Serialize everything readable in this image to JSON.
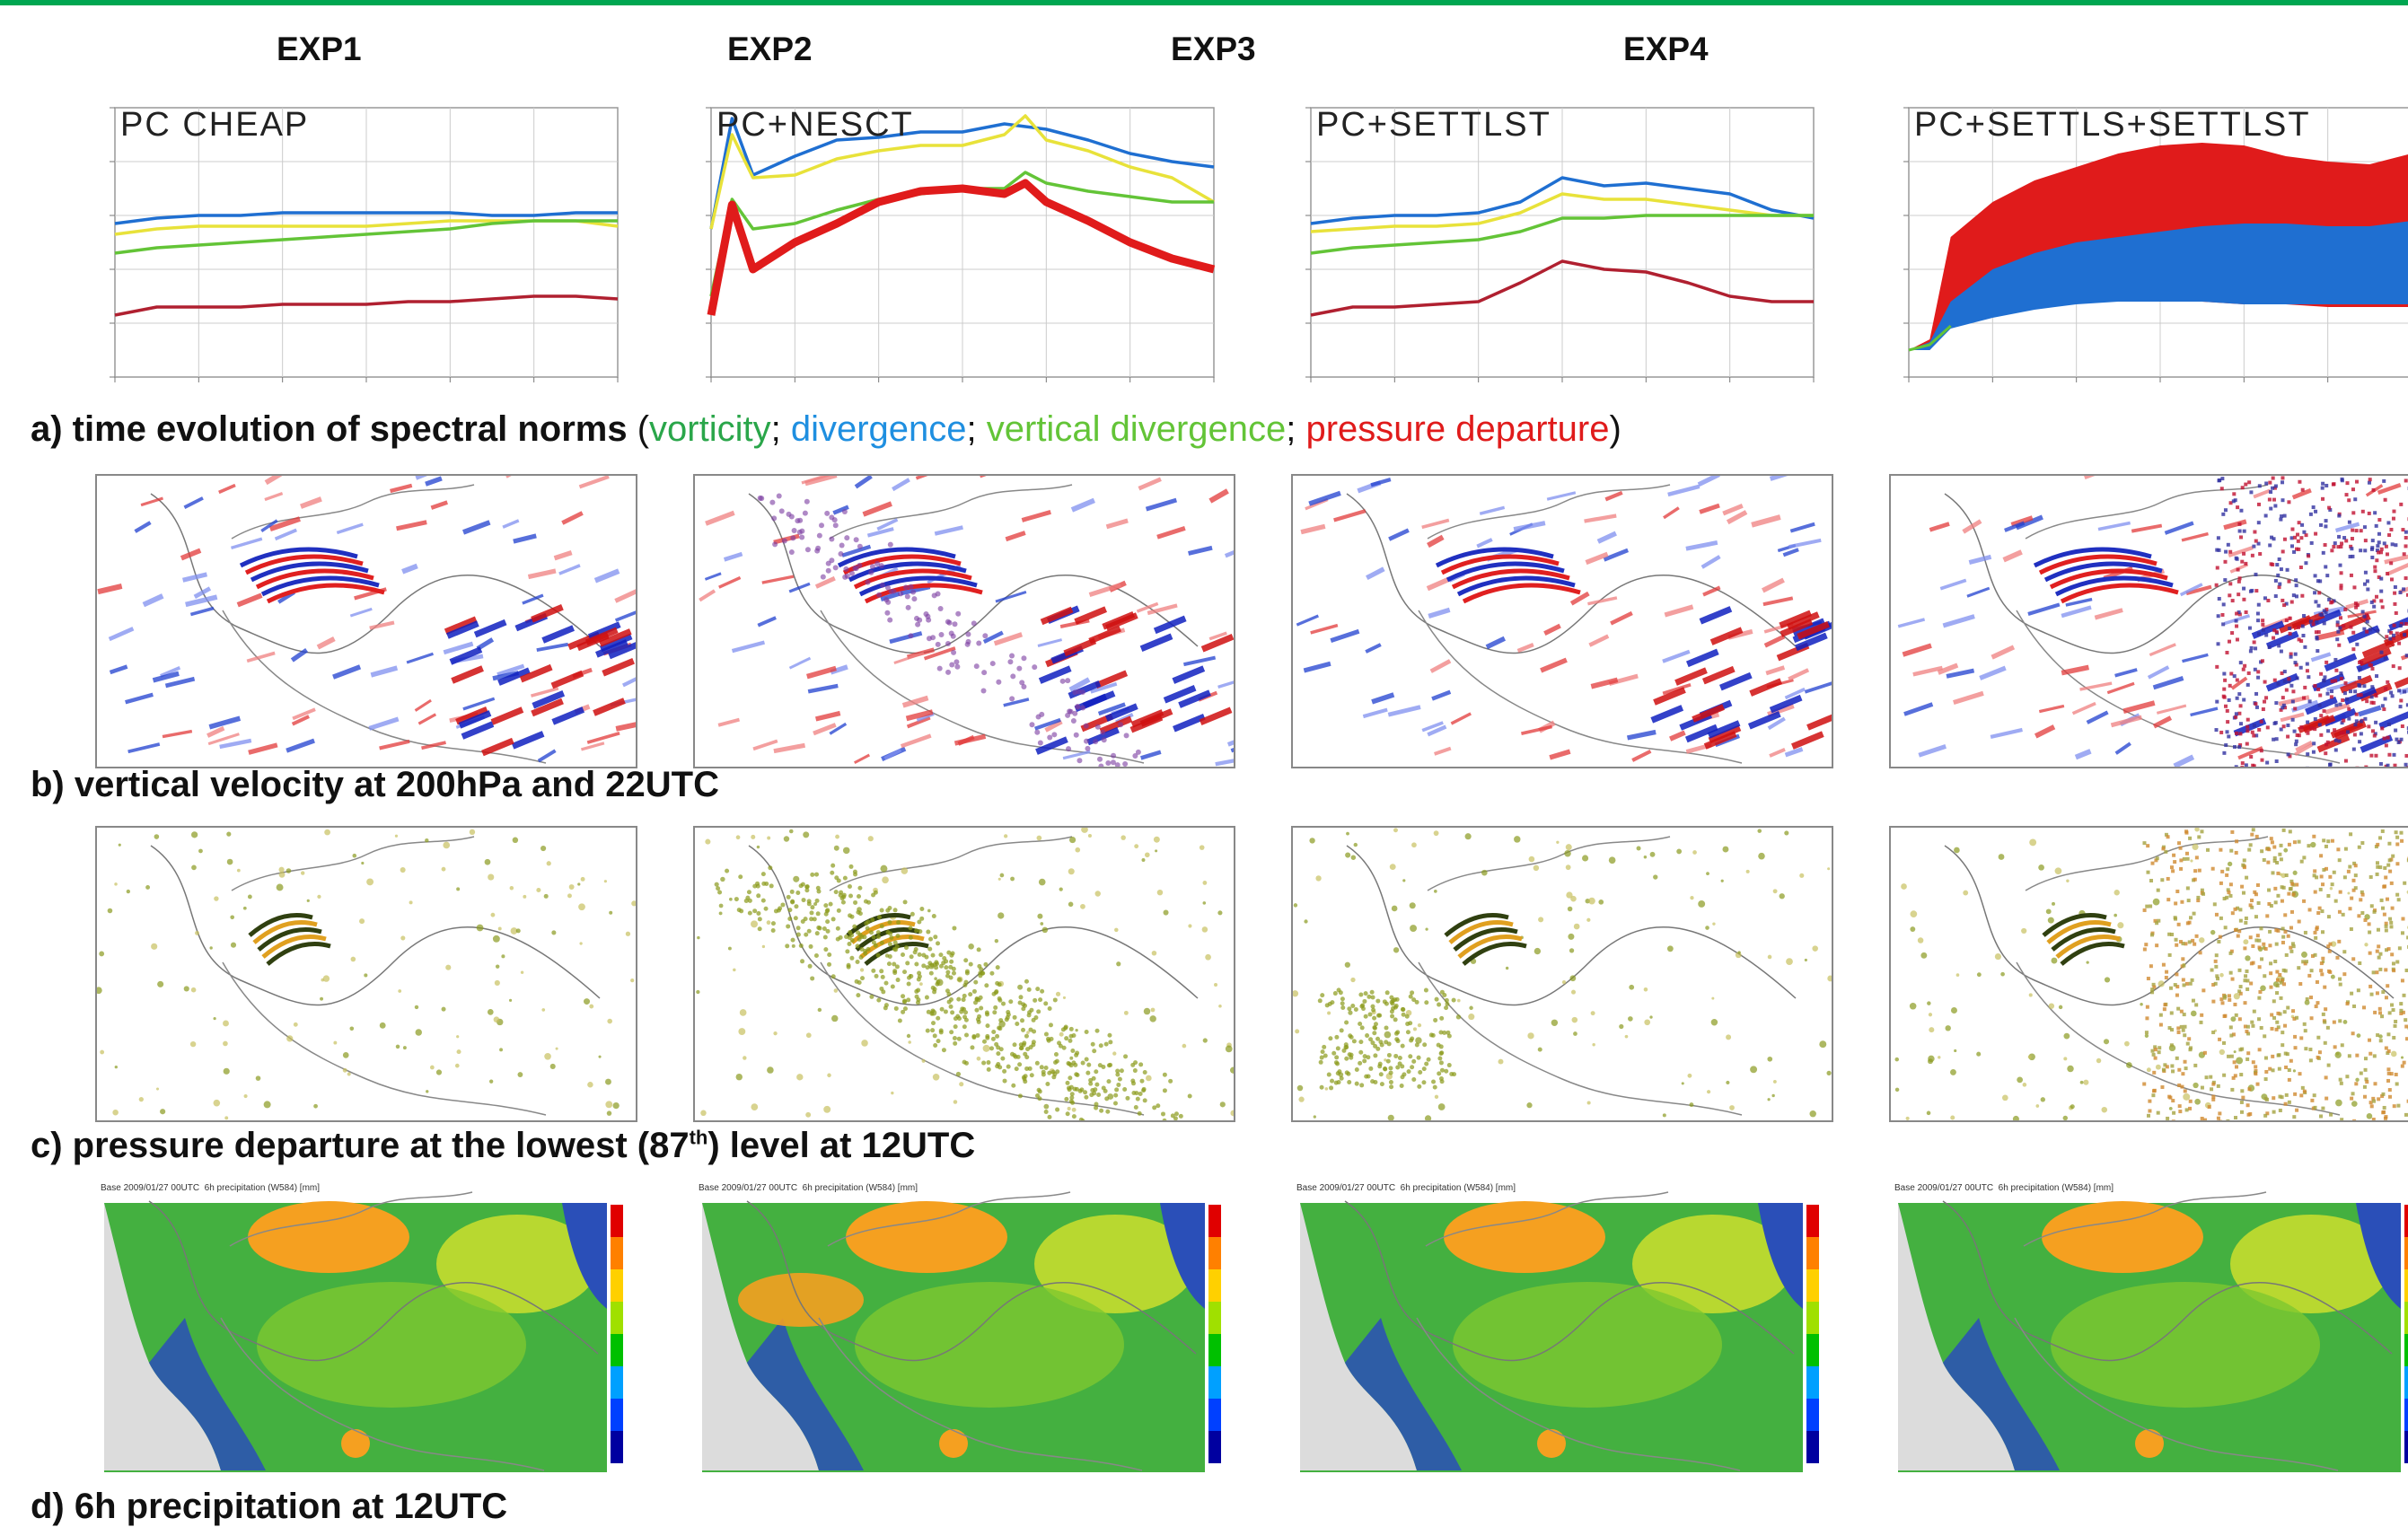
{
  "experiments": [
    "EXP1",
    "EXP2",
    "EXP3",
    "EXP4"
  ],
  "captions": {
    "a_prefix": "a) time evolution of spectral norms",
    "a_open": " (",
    "a_vort": "vorticity",
    "a_sep1": "; ",
    "a_div": "divergence",
    "a_sep2": "; ",
    "a_vdiv": "vertical divergence",
    "a_sep3": "; ",
    "a_pd": "pressure departure",
    "a_close": ")",
    "b": "b) vertical velocity at 200hPa and 22UTC",
    "c_pre": "c) pressure departure at the lowest (87",
    "c_sup": "th",
    "c_post": ") level at 12UTC",
    "d": "d) 6h precipitation at 12UTC"
  },
  "colors": {
    "vorticity": "#2aa64a",
    "divergence": "#1f6fd1",
    "vertical_divergence": "#63c437",
    "pressure_departure": "#e01b1b",
    "yellow": "#e8e23a",
    "topbar": "#00a651"
  },
  "precip_panel": {
    "header": "Base 2009/01/27 00UTC",
    "field": "6h precipitation (W584) [mm]"
  },
  "chart_data": [
    {
      "type": "line",
      "title": "PC CHEAP",
      "ylim": [
        0,
        10
      ],
      "x": [
        0,
        1,
        2,
        3,
        4,
        5,
        6,
        7,
        8,
        9,
        10,
        11,
        12
      ],
      "series": [
        {
          "values": [
            5.7,
            5.9,
            6.0,
            6.0,
            6.1,
            6.1,
            6.1,
            6.1,
            6.1,
            6.0,
            6.0,
            6.1,
            6.1
          ]
        },
        {
          "values": [
            5.3,
            5.5,
            5.6,
            5.6,
            5.6,
            5.6,
            5.6,
            5.7,
            5.8,
            5.8,
            5.8,
            5.8,
            5.6
          ]
        },
        {
          "values": [
            4.6,
            4.8,
            4.9,
            5.0,
            5.1,
            5.2,
            5.3,
            5.4,
            5.5,
            5.7,
            5.8,
            5.8,
            5.8
          ]
        },
        {
          "values": [
            2.3,
            2.6,
            2.6,
            2.6,
            2.7,
            2.7,
            2.7,
            2.8,
            2.8,
            2.9,
            3.0,
            3.0,
            2.9
          ]
        }
      ]
    },
    {
      "type": "line",
      "title": "PC+NESCT",
      "ylim": [
        0,
        10
      ],
      "x": [
        0,
        0.5,
        1,
        2,
        3,
        4,
        5,
        6,
        7,
        7.5,
        8,
        9,
        10,
        11,
        12
      ],
      "series": [
        {
          "values": [
            5.5,
            9.6,
            7.5,
            8.2,
            8.8,
            8.9,
            9.1,
            9.1,
            9.4,
            9.3,
            9.2,
            8.8,
            8.3,
            8.0,
            7.8
          ]
        },
        {
          "values": [
            5.5,
            9.0,
            7.4,
            7.5,
            8.1,
            8.4,
            8.6,
            8.6,
            9.0,
            9.7,
            8.8,
            8.4,
            7.8,
            7.4,
            6.5
          ]
        },
        {
          "values": [
            3.0,
            6.6,
            5.5,
            5.7,
            6.2,
            6.6,
            6.8,
            7.0,
            7.0,
            7.6,
            7.2,
            6.9,
            6.7,
            6.5,
            6.5
          ]
        },
        {
          "values": [
            2.3,
            6.4,
            4.0,
            5.0,
            5.7,
            6.5,
            6.9,
            7.0,
            6.8,
            7.2,
            6.5,
            5.8,
            5.0,
            4.4,
            4.0
          ]
        }
      ]
    },
    {
      "type": "line",
      "title": "PC+SETTLST",
      "ylim": [
        0,
        10
      ],
      "x": [
        0,
        1,
        2,
        3,
        4,
        5,
        6,
        7,
        8,
        9,
        10,
        11,
        12
      ],
      "series": [
        {
          "values": [
            5.7,
            5.9,
            6.0,
            6.0,
            6.1,
            6.5,
            7.4,
            7.1,
            7.2,
            7.0,
            6.8,
            6.2,
            5.9
          ]
        },
        {
          "values": [
            5.4,
            5.5,
            5.6,
            5.6,
            5.7,
            6.1,
            6.8,
            6.6,
            6.6,
            6.4,
            6.2,
            6.0,
            6.0
          ]
        },
        {
          "values": [
            4.6,
            4.8,
            4.9,
            5.0,
            5.1,
            5.4,
            5.9,
            5.9,
            6.0,
            6.0,
            6.0,
            6.0,
            6.0
          ]
        },
        {
          "values": [
            2.3,
            2.6,
            2.6,
            2.7,
            2.8,
            3.5,
            4.3,
            4.0,
            3.9,
            3.5,
            3.0,
            2.8,
            2.8
          ]
        }
      ]
    },
    {
      "type": "area",
      "title": "PC+SETTLS+SETTLST",
      "ylim": [
        0,
        10
      ],
      "x": [
        0,
        0.5,
        1,
        2,
        3,
        4,
        5,
        6,
        7,
        8,
        9,
        10,
        11,
        12
      ],
      "series": [
        {
          "upper": [
            1.0,
            1.4,
            5.2,
            6.5,
            7.3,
            7.8,
            8.3,
            8.6,
            8.7,
            8.6,
            8.2,
            8.0,
            7.9,
            8.3
          ],
          "lower": [
            1.0,
            1.0,
            2.0,
            2.4,
            2.7,
            2.8,
            2.8,
            2.8,
            2.8,
            2.7,
            2.7,
            2.6,
            2.6,
            2.6
          ]
        },
        {
          "upper": [
            1.0,
            1.3,
            2.8,
            4.0,
            4.6,
            5.0,
            5.2,
            5.4,
            5.6,
            5.7,
            5.7,
            5.6,
            5.6,
            5.8
          ],
          "lower": [
            1.0,
            1.0,
            1.8,
            2.2,
            2.5,
            2.7,
            2.8,
            2.8,
            2.8,
            2.7,
            2.7,
            2.7,
            2.7,
            2.7
          ]
        }
      ]
    }
  ]
}
